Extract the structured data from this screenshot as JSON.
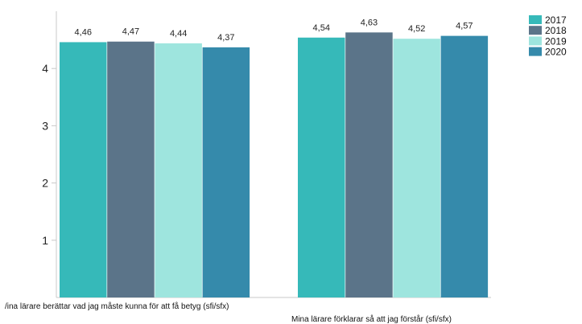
{
  "chart_data": {
    "type": "bar",
    "categories": [
      "Mina lärare berättar vad jag måste kunna för att få betyg (sfi/sfx)",
      "Mina lärare förklarar så att jag förstår (sfi/sfx)"
    ],
    "category_labels_visible": [
      "/ina lärare berättar vad jag måste kunna för att få betyg (sfi/sfx)",
      "Mina lärare förklarar så att jag förstår (sfi/sfx)"
    ],
    "series": [
      {
        "name": "2017",
        "values": [
          4.46,
          4.54
        ],
        "labels": [
          "4,46",
          "4,54"
        ],
        "color": "#36b9b9"
      },
      {
        "name": "2018",
        "values": [
          4.47,
          4.63
        ],
        "labels": [
          "4,47",
          "4,63"
        ],
        "color": "#5b7489"
      },
      {
        "name": "2019",
        "values": [
          4.44,
          4.52
        ],
        "labels": [
          "4,44",
          "4,52"
        ],
        "color": "#9ee5de"
      },
      {
        "name": "2020",
        "values": [
          4.37,
          4.57
        ],
        "labels": [
          "4,37",
          "4,57"
        ],
        "color": "#358aab"
      }
    ],
    "yticks": [
      "1",
      "2",
      "3",
      "4"
    ],
    "ylim": [
      0,
      5
    ],
    "grid": false,
    "legend_position": "top-right"
  }
}
